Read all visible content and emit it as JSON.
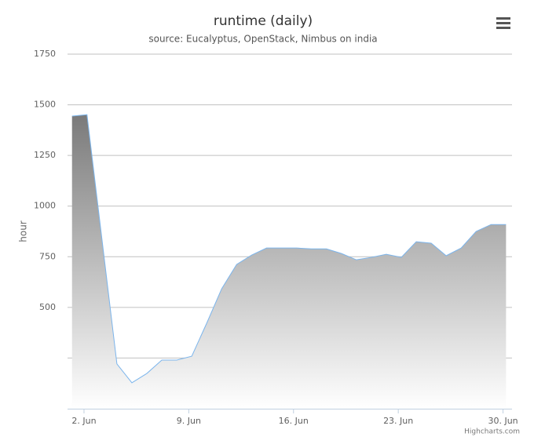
{
  "chart_data": {
    "type": "area",
    "title": "runtime (daily)",
    "subtitle": "source: Eucalyptus, OpenStack, Nimbus on india",
    "y_label": "hour",
    "credits": "Highcharts.com",
    "x": [
      1.2,
      2.2,
      3.2,
      4.2,
      5.2,
      6.2,
      7.2,
      8.2,
      9.2,
      10.2,
      11.2,
      12.2,
      13.2,
      14.2,
      15.2,
      16.2,
      17.2,
      18.2,
      19.2,
      20.2,
      21.2,
      22.2,
      23.2,
      24.2,
      25.2,
      26.2,
      27.2,
      28.2,
      29.2,
      30.2
    ],
    "series": [
      {
        "name": "runtime",
        "color": "#7cb5ec",
        "values": [
          1444,
          1451,
          836,
          221,
          128,
          174,
          240,
          240,
          259,
          422,
          592,
          712,
          758,
          793,
          793,
          793,
          789,
          789,
          766,
          735,
          747,
          762,
          747,
          824,
          817,
          755,
          793,
          875,
          909,
          909
        ]
      }
    ],
    "xlim": [
      0.9,
      30.6
    ],
    "xticks": [
      {
        "value": 2,
        "label": "2. Jun"
      },
      {
        "value": 9,
        "label": "9. Jun"
      },
      {
        "value": 16,
        "label": "16. Jun"
      },
      {
        "value": 23,
        "label": "23. Jun"
      },
      {
        "value": 30,
        "label": "30. Jun"
      }
    ],
    "ylim": [
      0,
      1750
    ],
    "yticks": [
      500,
      750,
      1000,
      1250,
      1500,
      1750
    ],
    "ygrid": [
      250,
      500,
      750,
      1000,
      1250,
      1500,
      1750
    ],
    "grid": true
  }
}
